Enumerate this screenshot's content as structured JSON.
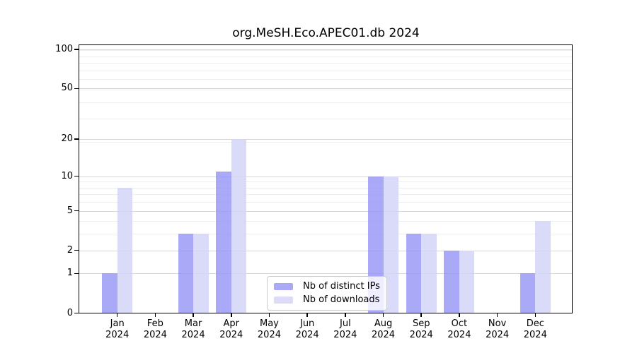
{
  "chart_data": {
    "type": "bar",
    "title": "org.MeSH.Eco.APEC01.db 2024",
    "scale": "log10(1+x)",
    "categories": [
      "Jan",
      "Feb",
      "Mar",
      "Apr",
      "May",
      "Jun",
      "Jul",
      "Aug",
      "Sep",
      "Oct",
      "Nov",
      "Dec"
    ],
    "category_year": "2024",
    "series": [
      {
        "name": "Nb of distinct IPs",
        "color": "#a9a9f7",
        "bar_color": "rgba(148,148,246,0.8)",
        "values": [
          1,
          0,
          3,
          11,
          0,
          0,
          0,
          10,
          3,
          2,
          0,
          1
        ]
      },
      {
        "name": "Nb of downloads",
        "color": "#dcdcf9",
        "bar_color": "rgba(211,211,248,0.85)",
        "values": [
          8,
          0,
          3,
          20,
          0,
          0,
          0,
          10,
          3,
          2,
          0,
          4
        ]
      }
    ],
    "yticks": [
      0,
      1,
      2,
      5,
      10,
      20,
      50,
      100
    ],
    "ylim": [
      0,
      110
    ],
    "xlabel": "",
    "ylabel": "",
    "grid": "on",
    "legend_position": "inside-bottom-center"
  },
  "colors": {
    "major_grid": "#d6d6d6",
    "minor_grid": "#eeeeee",
    "axis": "#000000",
    "legend_border": "#cccccc"
  }
}
